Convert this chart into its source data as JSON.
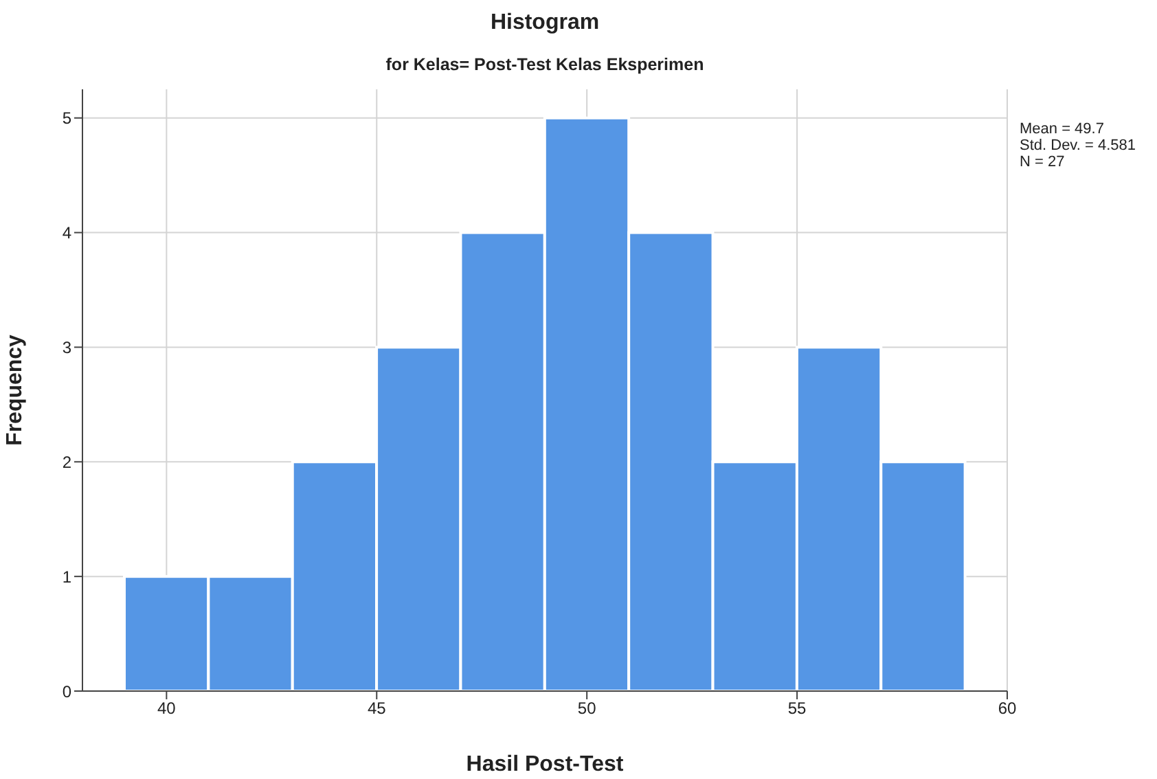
{
  "chart_data": {
    "type": "histogram",
    "title": "Histogram",
    "subtitle": "for Kelas= Post-Test Kelas Eksperimen",
    "xlabel": "Hasil Post-Test",
    "ylabel": "Frequency",
    "bins": [
      39,
      41,
      43,
      45,
      47,
      49,
      51,
      53,
      55,
      57,
      59
    ],
    "values": [
      1,
      1,
      2,
      3,
      4,
      5,
      4,
      2,
      3,
      2
    ],
    "color": "#5596e5",
    "xlim": [
      38,
      60
    ],
    "xticks": [
      40,
      45,
      50,
      55,
      60
    ],
    "ylim": [
      0,
      5.25
    ],
    "yticks": [
      0,
      1,
      2,
      3,
      4,
      5
    ],
    "grid": true,
    "annotations": [
      "Mean = 49.7",
      "Std. Dev. = 4.581",
      "N = 27"
    ]
  }
}
